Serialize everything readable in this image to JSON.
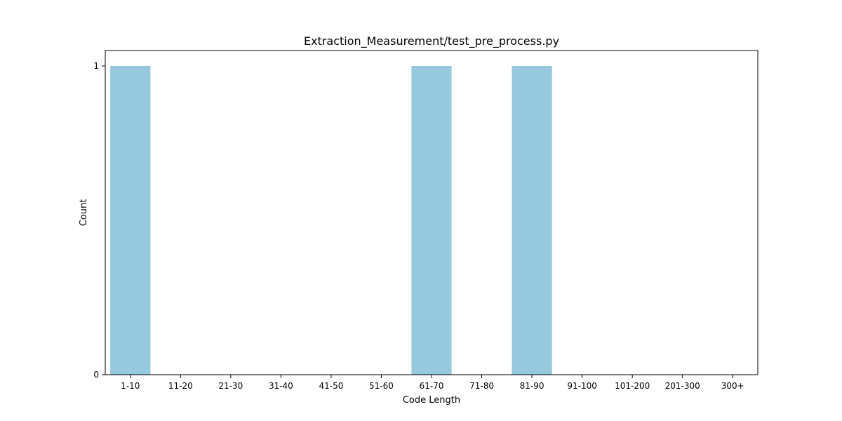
{
  "chart_data": {
    "type": "bar",
    "title": "Extraction_Measurement/test_pre_process.py",
    "xlabel": "Code Length",
    "ylabel": "Count",
    "categories": [
      "1-10",
      "11-20",
      "21-30",
      "31-40",
      "41-50",
      "51-60",
      "61-70",
      "71-80",
      "81-90",
      "91-100",
      "101-200",
      "201-300",
      "300+"
    ],
    "values": [
      1,
      0,
      0,
      0,
      0,
      0,
      1,
      0,
      1,
      0,
      0,
      0,
      0
    ],
    "ylim": [
      0,
      1.05
    ],
    "yticks": [
      0,
      1
    ],
    "grid": false,
    "legend": "none",
    "bar_color": "#96c9de"
  }
}
